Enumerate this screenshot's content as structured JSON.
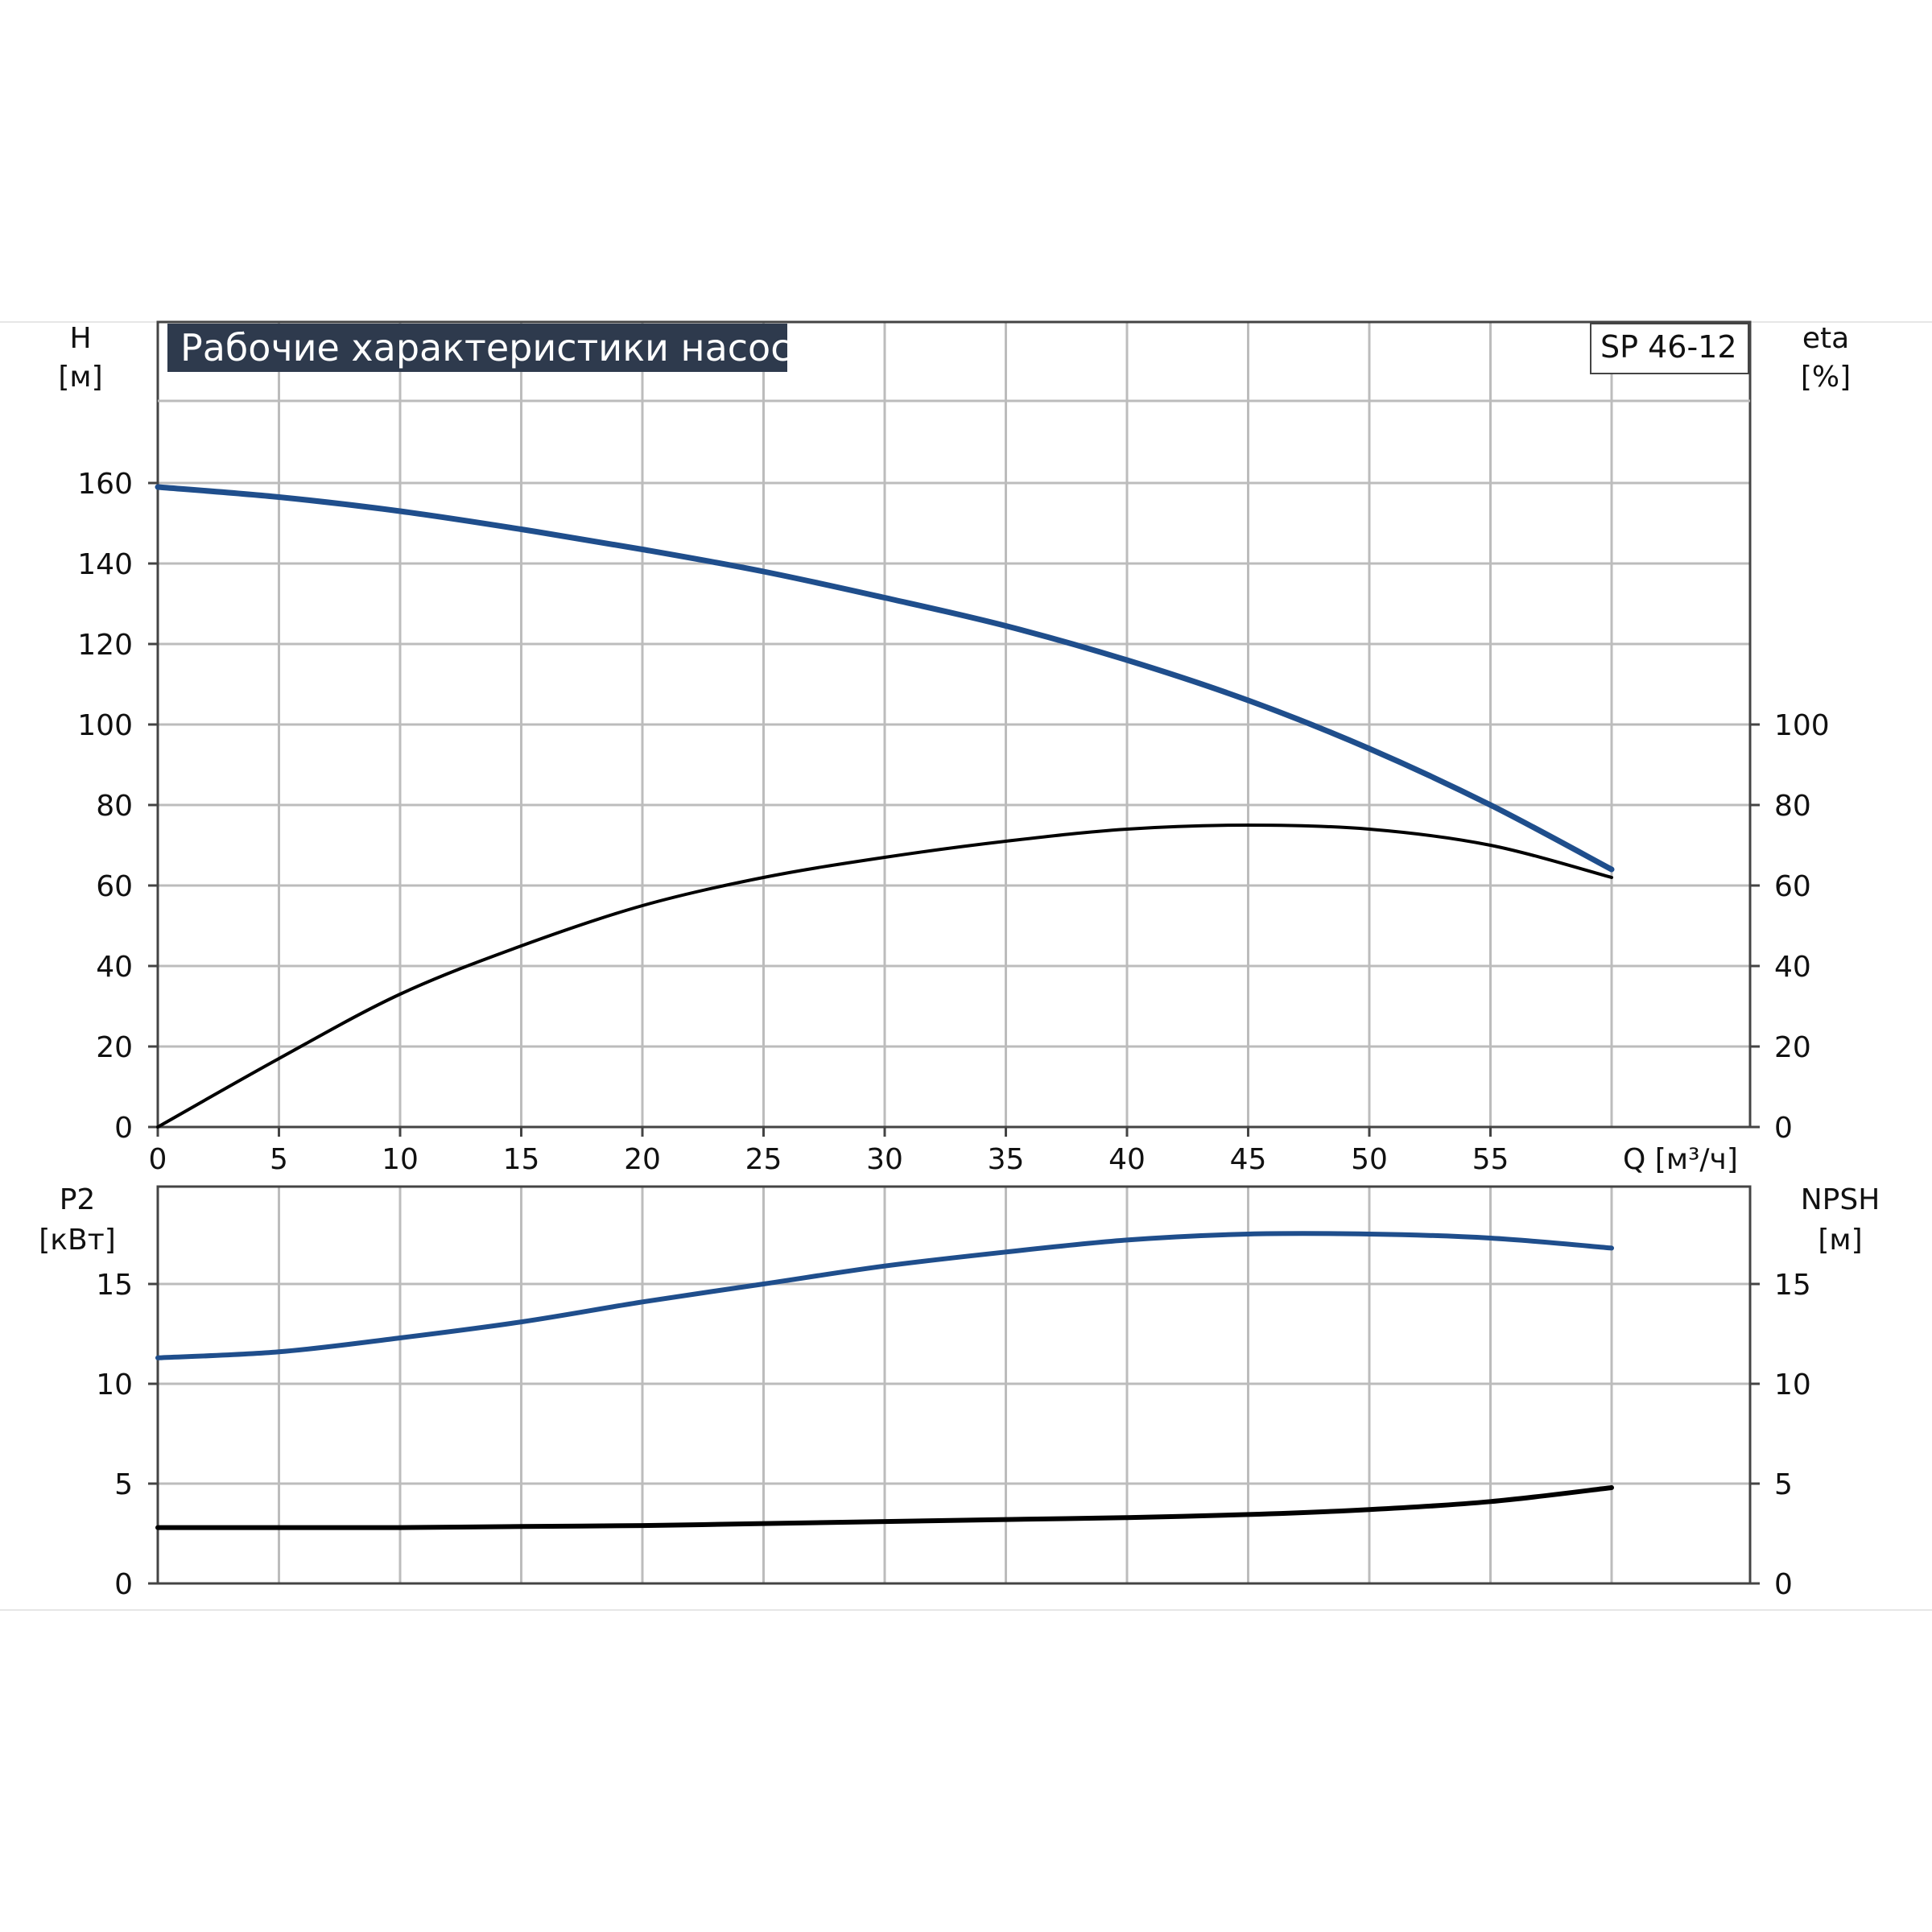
{
  "title": "Рабочие характеристики насоса",
  "model": "SP 46-12",
  "colors": {
    "blue": "#1f4e8c",
    "black": "#000000",
    "title_bg": "#2e3a4d",
    "grid": "#bcbcbc"
  },
  "chart_data": [
    {
      "type": "line",
      "panel": "top",
      "left_axis": {
        "name": "H",
        "unit": "[м]",
        "ticks": [
          0,
          20,
          40,
          60,
          80,
          100,
          120,
          140,
          160
        ],
        "range": [
          0,
          180
        ]
      },
      "right_axis": {
        "name": "eta",
        "unit": "[%]",
        "ticks": [
          0,
          20,
          40,
          60,
          80,
          100
        ],
        "range": [
          0,
          180
        ]
      },
      "x_axis": {
        "label": "Q [м³/ч]",
        "ticks": [
          0,
          5,
          10,
          15,
          20,
          25,
          30,
          35,
          40,
          45,
          50,
          55
        ],
        "range": [
          0,
          65
        ]
      },
      "grid": true,
      "series": [
        {
          "axis": "left",
          "color": "#1f4e8c",
          "x": [
            0,
            5,
            10,
            15,
            20,
            25,
            30,
            35,
            40,
            45,
            50,
            55,
            60
          ],
          "y": [
            159,
            156.5,
            153,
            148.5,
            143.5,
            138,
            131.5,
            124.5,
            116,
            106,
            94,
            80,
            64
          ]
        },
        {
          "axis": "right",
          "color": "#000000",
          "x": [
            0,
            5,
            10,
            15,
            20,
            25,
            30,
            35,
            40,
            45,
            50,
            55,
            60
          ],
          "y": [
            0,
            17,
            33,
            45,
            55,
            62,
            67,
            71,
            74,
            75,
            74,
            70,
            62
          ]
        }
      ]
    },
    {
      "type": "line",
      "panel": "bottom",
      "left_axis": {
        "name": "P2",
        "unit": "[кВт]",
        "ticks": [
          0,
          5,
          10,
          15
        ],
        "range": [
          0,
          20
        ]
      },
      "right_axis": {
        "name": "NPSH",
        "unit": "[м]",
        "ticks": [
          0,
          5,
          10,
          15
        ],
        "range": [
          0,
          20
        ]
      },
      "x_axis": {
        "ticks": [
          0,
          5,
          10,
          15,
          20,
          25,
          30,
          35,
          40,
          45,
          50,
          55
        ],
        "range": [
          0,
          65
        ]
      },
      "grid": true,
      "series": [
        {
          "axis": "left",
          "color": "#1f4e8c",
          "x": [
            0,
            5,
            10,
            15,
            20,
            25,
            30,
            35,
            40,
            45,
            50,
            55,
            60
          ],
          "y": [
            11.3,
            11.6,
            12.3,
            13.1,
            14.1,
            15.0,
            15.9,
            16.6,
            17.2,
            17.5,
            17.5,
            17.3,
            16.8
          ]
        },
        {
          "axis": "right",
          "color": "#000000",
          "x": [
            0,
            5,
            10,
            15,
            20,
            25,
            30,
            35,
            40,
            45,
            50,
            55,
            60
          ],
          "y": [
            2.8,
            2.8,
            2.8,
            2.85,
            2.9,
            3.0,
            3.1,
            3.2,
            3.3,
            3.45,
            3.7,
            4.1,
            4.8
          ]
        }
      ]
    }
  ]
}
